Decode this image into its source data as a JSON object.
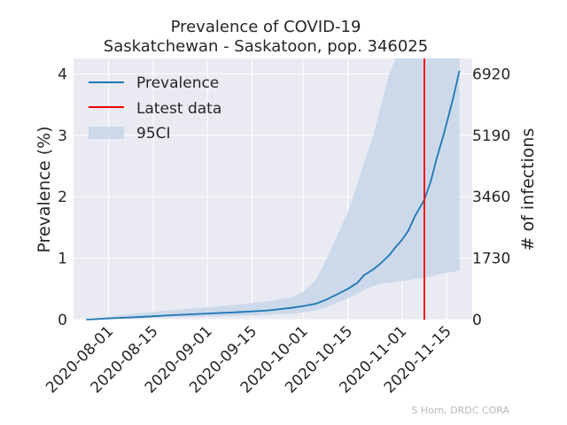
{
  "chart_data": {
    "type": "line",
    "title": "Prevalence of COVID-19",
    "subtitle": "Saskatchewan - Saskatoon, pop. 346025",
    "xlabel": "",
    "ylabel": "Prevalence (%)",
    "ylabel_right": "# of infections",
    "x_ticks": [
      "2020-08-01",
      "2020-08-15",
      "2020-09-01",
      "2020-09-15",
      "2020-10-01",
      "2020-10-15",
      "2020-11-01",
      "2020-11-15"
    ],
    "y_ticks": [
      "0",
      "1",
      "2",
      "3",
      "4"
    ],
    "y_ticks_right": [
      "0",
      "1730",
      "3460",
      "5190",
      "6920"
    ],
    "ylim": [
      0,
      4.25
    ],
    "xlim": [
      "2020-07-21",
      "2020-11-23"
    ],
    "grid": true,
    "legend_position": "top-left",
    "latest_data_date": "2020-11-08",
    "colors": {
      "prevalence": "#1f77b4",
      "latest": "#ff0000",
      "band": "#c5d6ea",
      "background": "#eaeaf2"
    },
    "series": [
      {
        "name": "Prevalence",
        "x": [
          "2020-07-25",
          "2020-08-01",
          "2020-08-10",
          "2020-08-20",
          "2020-09-01",
          "2020-09-10",
          "2020-09-20",
          "2020-09-27",
          "2020-10-01",
          "2020-10-05",
          "2020-10-08",
          "2020-10-12",
          "2020-10-15",
          "2020-10-18",
          "2020-10-20",
          "2020-10-23",
          "2020-10-25",
          "2020-10-28",
          "2020-10-30",
          "2020-11-01",
          "2020-11-03",
          "2020-11-05",
          "2020-11-08",
          "2020-11-10",
          "2020-11-12",
          "2020-11-14",
          "2020-11-17",
          "2020-11-19"
        ],
        "values": [
          0.0,
          0.02,
          0.04,
          0.07,
          0.1,
          0.12,
          0.15,
          0.19,
          0.22,
          0.26,
          0.32,
          0.42,
          0.5,
          0.6,
          0.72,
          0.82,
          0.9,
          1.05,
          1.18,
          1.3,
          1.45,
          1.68,
          1.95,
          2.25,
          2.65,
          3.0,
          3.6,
          4.05
        ]
      },
      {
        "name": "95CI",
        "x": [
          "2020-07-25",
          "2020-08-01",
          "2020-08-10",
          "2020-08-20",
          "2020-09-01",
          "2020-09-10",
          "2020-09-20",
          "2020-09-27",
          "2020-10-01",
          "2020-10-05",
          "2020-10-08",
          "2020-10-12",
          "2020-10-15",
          "2020-10-18",
          "2020-10-20",
          "2020-10-23",
          "2020-10-25",
          "2020-10-28",
          "2020-10-30",
          "2020-11-01",
          "2020-11-03",
          "2020-11-05",
          "2020-11-08",
          "2020-11-10",
          "2020-11-12",
          "2020-11-14",
          "2020-11-17",
          "2020-11-19"
        ],
        "lower": [
          0.0,
          0.01,
          0.02,
          0.04,
          0.05,
          0.06,
          0.08,
          0.1,
          0.12,
          0.15,
          0.2,
          0.28,
          0.35,
          0.42,
          0.48,
          0.55,
          0.58,
          0.6,
          0.62,
          0.63,
          0.64,
          0.66,
          0.68,
          0.7,
          0.73,
          0.75,
          0.78,
          0.8
        ],
        "upper": [
          0.0,
          0.05,
          0.1,
          0.15,
          0.2,
          0.24,
          0.3,
          0.36,
          0.45,
          0.65,
          0.95,
          1.4,
          1.75,
          2.2,
          2.55,
          3.0,
          3.4,
          4.0,
          4.25,
          4.25,
          4.25,
          4.25,
          4.25,
          4.25,
          4.25,
          4.25,
          4.25,
          4.25
        ]
      }
    ],
    "legend": {
      "prevalence": "Prevalence",
      "latest": "Latest data",
      "band": "95CI"
    },
    "credit": "S Horn, DRDC CORA"
  }
}
